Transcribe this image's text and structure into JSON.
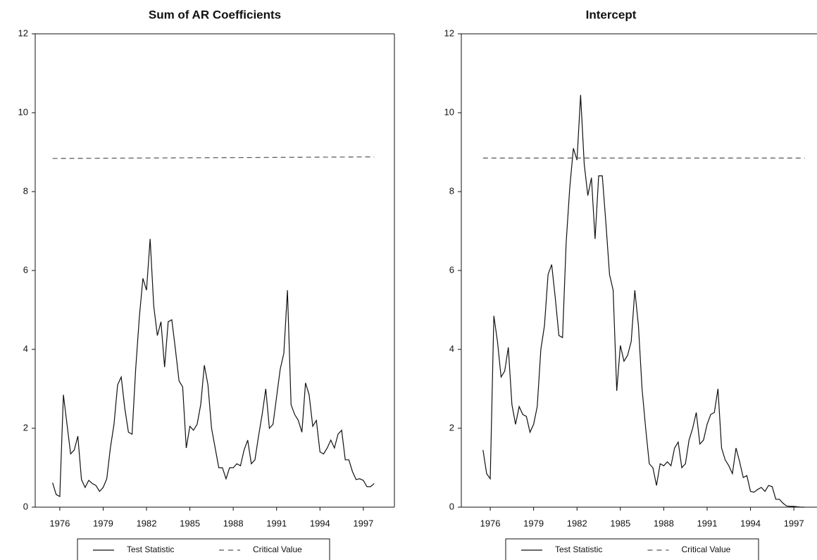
{
  "chart_data": [
    {
      "type": "line",
      "title": "Sum of AR Coefficients",
      "x": [
        1975.5,
        1975.75,
        1976,
        1976.25,
        1976.5,
        1976.75,
        1977,
        1977.25,
        1977.5,
        1977.75,
        1978,
        1978.25,
        1978.5,
        1978.75,
        1979,
        1979.25,
        1979.5,
        1979.75,
        1980,
        1980.25,
        1980.5,
        1980.75,
        1981,
        1981.25,
        1981.5,
        1981.75,
        1982,
        1982.25,
        1982.5,
        1982.75,
        1983,
        1983.25,
        1983.5,
        1983.75,
        1984,
        1984.25,
        1984.5,
        1984.75,
        1985,
        1985.25,
        1985.5,
        1985.75,
        1986,
        1986.25,
        1986.5,
        1986.75,
        1987,
        1987.25,
        1987.5,
        1987.75,
        1988,
        1988.25,
        1988.5,
        1988.75,
        1989,
        1989.25,
        1989.5,
        1989.75,
        1990,
        1990.25,
        1990.5,
        1990.75,
        1991,
        1991.25,
        1991.5,
        1991.75,
        1992,
        1992.25,
        1992.5,
        1992.75,
        1993,
        1993.25,
        1993.5,
        1993.75,
        1994,
        1994.25,
        1994.5,
        1994.75,
        1995,
        1995.25,
        1995.5,
        1995.75,
        1996,
        1996.25,
        1996.5,
        1996.75,
        1997,
        1997.25,
        1997.5,
        1997.75
      ],
      "series": [
        {
          "name": "Test Statistic",
          "color": "#111111",
          "dashed": false,
          "values": [
            0.62,
            0.32,
            0.27,
            2.85,
            2.1,
            1.35,
            1.45,
            1.8,
            0.7,
            0.5,
            0.68,
            0.6,
            0.55,
            0.4,
            0.5,
            0.72,
            1.5,
            2.1,
            3.1,
            3.3,
            2.5,
            1.9,
            1.85,
            3.5,
            4.8,
            5.8,
            5.5,
            6.8,
            5.1,
            4.35,
            4.7,
            3.55,
            4.7,
            4.75,
            4.0,
            3.2,
            3.05,
            1.5,
            2.05,
            1.95,
            2.1,
            2.6,
            3.6,
            3.1,
            2.0,
            1.5,
            1.0,
            1.0,
            0.72,
            1.0,
            1.0,
            1.1,
            1.05,
            1.45,
            1.7,
            1.1,
            1.2,
            1.8,
            2.35,
            3.0,
            2.0,
            2.1,
            2.8,
            3.5,
            3.9,
            5.5,
            2.6,
            2.35,
            2.2,
            1.9,
            3.15,
            2.85,
            2.05,
            2.2,
            1.4,
            1.35,
            1.5,
            1.7,
            1.5,
            1.85,
            1.95,
            1.2,
            1.2,
            0.9,
            0.7,
            0.72,
            0.68,
            0.52,
            0.52,
            0.6
          ]
        },
        {
          "name": "Critical Value",
          "color": "#555555",
          "dashed": true,
          "x": [
            1975.5,
            1997.75
          ],
          "values": [
            8.84,
            8.88
          ]
        }
      ],
      "xlim": [
        1974.3,
        1999.15
      ],
      "xticks": [
        1976,
        1979,
        1982,
        1985,
        1988,
        1991,
        1994,
        1997
      ],
      "ylim": [
        0,
        12
      ],
      "yticks": [
        0,
        2,
        4,
        6,
        8,
        10,
        12
      ]
    },
    {
      "type": "line",
      "title": "Intercept",
      "x": [
        1975.5,
        1975.75,
        1976,
        1976.25,
        1976.5,
        1976.75,
        1977,
        1977.25,
        1977.5,
        1977.75,
        1978,
        1978.25,
        1978.5,
        1978.75,
        1979,
        1979.25,
        1979.5,
        1979.75,
        1980,
        1980.25,
        1980.5,
        1980.75,
        1981,
        1981.25,
        1981.5,
        1981.75,
        1982,
        1982.25,
        1982.5,
        1982.75,
        1983,
        1983.25,
        1983.5,
        1983.75,
        1984,
        1984.25,
        1984.5,
        1984.75,
        1985,
        1985.25,
        1985.5,
        1985.75,
        1986,
        1986.25,
        1986.5,
        1986.75,
        1987,
        1987.25,
        1987.5,
        1987.75,
        1988,
        1988.25,
        1988.5,
        1988.75,
        1989,
        1989.25,
        1989.5,
        1989.75,
        1990,
        1990.25,
        1990.5,
        1990.75,
        1991,
        1991.25,
        1991.5,
        1991.75,
        1992,
        1992.25,
        1992.5,
        1992.75,
        1993,
        1993.25,
        1993.5,
        1993.75,
        1994,
        1994.25,
        1994.5,
        1994.75,
        1995,
        1995.25,
        1995.5,
        1995.75,
        1996,
        1996.25,
        1996.5,
        1996.75,
        1997,
        1997.25,
        1997.5,
        1997.75
      ],
      "series": [
        {
          "name": "Test Statistic",
          "color": "#111111",
          "dashed": false,
          "values": [
            1.45,
            0.85,
            0.72,
            4.85,
            4.2,
            3.3,
            3.45,
            4.05,
            2.6,
            2.1,
            2.55,
            2.35,
            2.3,
            1.9,
            2.1,
            2.55,
            4.0,
            4.6,
            5.9,
            6.15,
            5.3,
            4.35,
            4.3,
            6.7,
            8.1,
            9.1,
            8.8,
            10.45,
            8.7,
            7.9,
            8.35,
            6.8,
            8.4,
            8.4,
            7.2,
            5.9,
            5.5,
            2.95,
            4.1,
            3.7,
            3.85,
            4.2,
            5.5,
            4.6,
            3.0,
            2.0,
            1.1,
            1.0,
            0.55,
            1.1,
            1.05,
            1.15,
            1.05,
            1.5,
            1.65,
            1.0,
            1.1,
            1.7,
            2.0,
            2.4,
            1.6,
            1.7,
            2.1,
            2.35,
            2.4,
            3.0,
            1.5,
            1.2,
            1.05,
            0.85,
            1.5,
            1.15,
            0.75,
            0.8,
            0.4,
            0.38,
            0.45,
            0.5,
            0.4,
            0.55,
            0.52,
            0.2,
            0.2,
            0.1,
            0.03,
            0.02,
            0.02,
            0.01,
            0,
            0
          ]
        },
        {
          "name": "Critical Value",
          "color": "#555555",
          "dashed": true,
          "x": [
            1975.5,
            1997.75
          ],
          "values": [
            8.85,
            8.85
          ]
        }
      ],
      "xlim": [
        1974.0,
        1998.6
      ],
      "xticks": [
        1976,
        1979,
        1982,
        1985,
        1988,
        1991,
        1994,
        1997
      ],
      "ylim": [
        0,
        12
      ],
      "yticks": [
        0,
        2,
        4,
        6,
        8,
        10,
        12
      ]
    }
  ]
}
